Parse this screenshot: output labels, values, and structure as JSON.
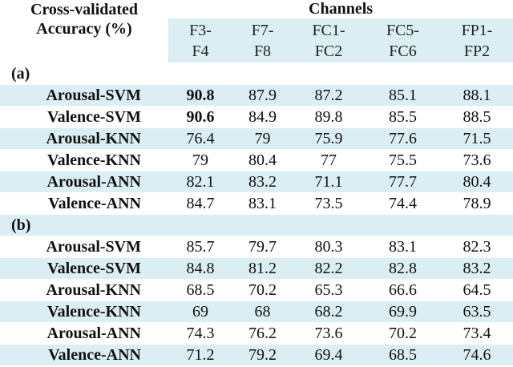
{
  "header": {
    "title_lines": [
      "Cross-validated",
      "Accuracy (%)"
    ],
    "group": "Channels",
    "columns": [
      [
        "F3-",
        "F4"
      ],
      [
        "F7-",
        "F8"
      ],
      [
        "FC1-",
        "FC2"
      ],
      [
        "FC5-",
        "FC6"
      ],
      [
        "FP1-",
        "FP2"
      ]
    ]
  },
  "sections": [
    {
      "label": "(a)",
      "rows": [
        {
          "label": "Arousal-SVM",
          "values": [
            90.8,
            87.9,
            87.2,
            85.1,
            88.1
          ],
          "bold": [
            0
          ]
        },
        {
          "label": "Valence-SVM",
          "values": [
            90.6,
            84.9,
            89.8,
            85.5,
            88.5
          ],
          "bold": [
            0
          ]
        },
        {
          "label": "Arousal-KNN",
          "values": [
            76.4,
            79,
            75.9,
            77.6,
            71.5
          ]
        },
        {
          "label": "Valence-KNN",
          "values": [
            79,
            80.4,
            77,
            75.5,
            73.6
          ]
        },
        {
          "label": "Arousal-ANN",
          "values": [
            82.1,
            83.2,
            71.1,
            77.7,
            80.4
          ]
        },
        {
          "label": "Valence-ANN",
          "values": [
            84.7,
            83.1,
            73.5,
            74.4,
            78.9
          ]
        }
      ]
    },
    {
      "label": "(b)",
      "rows": [
        {
          "label": "Arousal-SVM",
          "values": [
            85.7,
            79.7,
            80.3,
            83.1,
            82.3
          ]
        },
        {
          "label": "Valence-SVM",
          "values": [
            84.8,
            81.2,
            82.2,
            82.8,
            83.2
          ]
        },
        {
          "label": "Arousal-KNN",
          "values": [
            68.5,
            70.2,
            65.3,
            66.6,
            64.5
          ]
        },
        {
          "label": "Valence-KNN",
          "values": [
            69,
            68,
            68.2,
            69.9,
            63.5
          ]
        },
        {
          "label": "Arousal-ANN",
          "values": [
            74.3,
            76.2,
            73.6,
            70.2,
            73.4
          ]
        },
        {
          "label": "Valence-ANN",
          "values": [
            71.2,
            79.2,
            69.4,
            68.5,
            74.6
          ]
        }
      ]
    }
  ]
}
